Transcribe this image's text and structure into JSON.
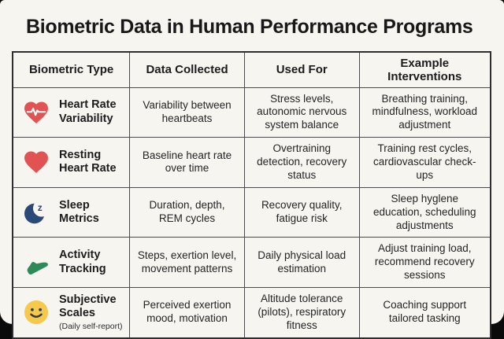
{
  "page": {
    "title": "Biometric Data in Human Performance Programs"
  },
  "colors": {
    "card_background": "#f7f5f0",
    "heart_red": "#e05352",
    "moon_navy": "#2a4878",
    "shoe_green": "#2e8b57",
    "smiley_yellow": "#f6c94b",
    "smiley_face": "#2b3a4d",
    "pulse_line": "#ffffff"
  },
  "table": {
    "headers": [
      "Biometric Type",
      "Data Collected",
      "Used For",
      "Example Interventions"
    ],
    "rows": [
      {
        "icon": "heart-pulse-icon",
        "label": "Heart Rate Variability",
        "note": "",
        "data_collected": "Variability between heartbeats",
        "used_for": "Stress levels, autonomic nervous system balance",
        "interventions": "Breathing training, mindfulness, workload adjustment"
      },
      {
        "icon": "heart-icon",
        "label": "Resting Heart Rate",
        "note": "",
        "data_collected": "Baseline heart rate over time",
        "used_for": "Overtraining detection, recovery status",
        "interventions": "Training rest cycles, cardiovascular check-ups"
      },
      {
        "icon": "moon-sleep-icon",
        "label": "Sleep Metrics",
        "note": "",
        "data_collected": "Duration, depth, REM cycles",
        "used_for": "Recovery quality, fatigue risk",
        "interventions": "Sleep hyglene education, scheduling adjustments"
      },
      {
        "icon": "shoe-icon",
        "label": "Activity Tracking",
        "note": "",
        "data_collected": "Steps, exertion level, movement patterns",
        "used_for": "Daily physical load estimation",
        "interventions": "Adjust training load, recommend recovery sessions"
      },
      {
        "icon": "smiley-icon",
        "label": "Subjective Scales",
        "note": "(Daily self-report)",
        "data_collected": "Perceived exertion mood, motivation",
        "used_for": "Altitude tolerance (pilots), respiratory fitness",
        "interventions": "Coaching support tailored tasking"
      }
    ]
  }
}
